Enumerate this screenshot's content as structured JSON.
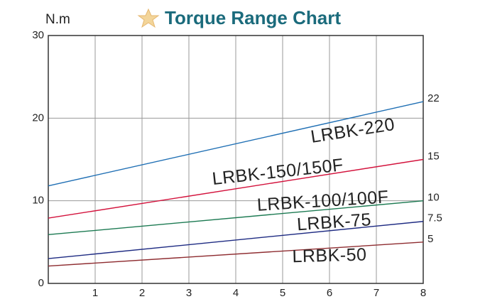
{
  "chart_data": {
    "type": "line",
    "title": "Torque Range Chart",
    "y_label": "N.m",
    "x": [
      0,
      8
    ],
    "xlim": [
      0,
      8
    ],
    "xticks": [
      1,
      2,
      3,
      4,
      5,
      6,
      7,
      8
    ],
    "ylim": [
      0,
      30
    ],
    "yticks": [
      0,
      10,
      20,
      30
    ],
    "grid": true,
    "series": [
      {
        "name": "LRBK-220",
        "color": "#1f6fb4",
        "values": [
          11.8,
          22
        ]
      },
      {
        "name": "LRBK-150/150F",
        "color": "#d3123c",
        "values": [
          7.9,
          15
        ]
      },
      {
        "name": "LRBK-100/100F",
        "color": "#1c7a52",
        "values": [
          5.9,
          10
        ]
      },
      {
        "name": "LRBK-75",
        "color": "#1d2a82",
        "values": [
          3,
          7.5
        ]
      },
      {
        "name": "LRBK-50",
        "color": "#8e2c30",
        "values": [
          2.1,
          5
        ]
      }
    ]
  }
}
